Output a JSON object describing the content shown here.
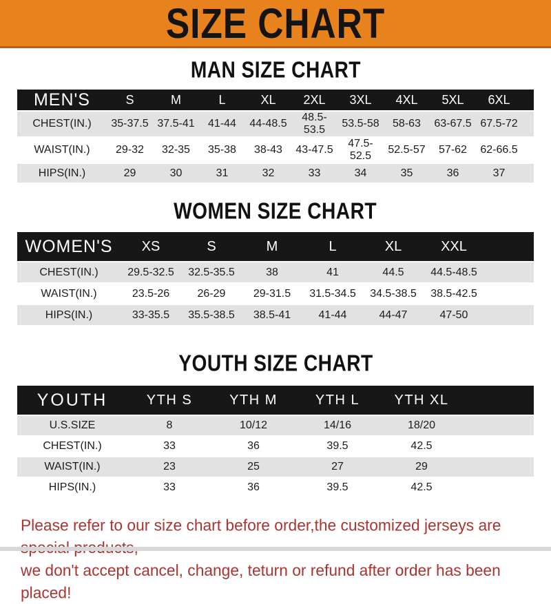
{
  "banner": {
    "title": "SIZE CHART"
  },
  "colors": {
    "banner_bg": "#E8821D",
    "banner_edge": "#BE5F10",
    "bar_bg": "#171717",
    "row_shade": "#E2E2E2",
    "note_color": "#AB3430"
  },
  "sections": [
    {
      "heading": "MAN SIZE CHART",
      "corner_label": "MEN'S",
      "columns": [
        "S",
        "M",
        "L",
        "XL",
        "2XL",
        "3XL",
        "4XL",
        "5XL",
        "6XL"
      ],
      "rows": [
        {
          "label": "CHEST(IN.)",
          "values": [
            "35-37.5",
            "37.5-41",
            "41-44",
            "44-48.5",
            "48.5-53.5",
            "53.5-58",
            "58-63",
            "63-67.5",
            "67.5-72"
          ]
        },
        {
          "label": "WAIST(IN.)",
          "values": [
            "29-32",
            "32-35",
            "35-38",
            "38-43",
            "43-47.5",
            "47.5-52.5",
            "52.5-57",
            "57-62",
            "62-66.5"
          ]
        },
        {
          "label": "HIPS(IN.)",
          "values": [
            "29",
            "30",
            "31",
            "32",
            "33",
            "34",
            "35",
            "36",
            "37"
          ]
        }
      ]
    },
    {
      "heading": "WOMEN SIZE CHART",
      "corner_label": "WOMEN'S",
      "columns": [
        "XS",
        "S",
        "M",
        "L",
        "XL",
        "XXL"
      ],
      "rows": [
        {
          "label": "CHEST(IN.)",
          "values": [
            "29.5-32.5",
            "32.5-35.5",
            "38",
            "41",
            "44.5",
            "44.5-48.5"
          ]
        },
        {
          "label": "WAIST(IN.)",
          "values": [
            "23.5-26",
            "26-29",
            "29-31.5",
            "31.5-34.5",
            "34.5-38.5",
            "38.5-42.5"
          ]
        },
        {
          "label": "HIPS(IN.)",
          "values": [
            "33-35.5",
            "35.5-38.5",
            "38.5-41",
            "41-44",
            "44-47",
            "47-50"
          ]
        }
      ]
    },
    {
      "heading": "YOUTH SIZE CHART",
      "corner_label": "YOUTH",
      "columns": [
        "YTH S",
        "YTH M",
        "YTH L",
        "YTH XL"
      ],
      "rows": [
        {
          "label": "U.S.SIZE",
          "values": [
            "8",
            "10/12",
            "14/16",
            "18/20"
          ]
        },
        {
          "label": "CHEST(IN.)",
          "values": [
            "33",
            "36",
            "39.5",
            "42.5"
          ]
        },
        {
          "label": "WAIST(IN.)",
          "values": [
            "23",
            "25",
            "27",
            "29"
          ]
        },
        {
          "label": "HIPS(IN.)",
          "values": [
            "33",
            "36",
            "39.5",
            "42.5"
          ]
        }
      ]
    }
  ],
  "footer": {
    "line1": "Please refer to our size chart before order,the customized jerseys are special products,",
    "line2": "we don't accept cancel, change, teturn or refund after order has been placed!"
  }
}
